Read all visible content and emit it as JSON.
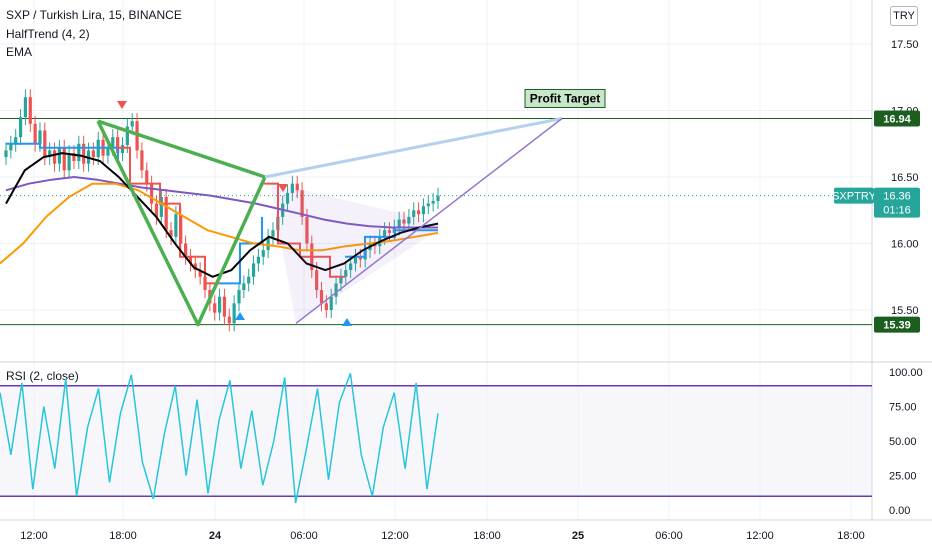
{
  "chart_title": "SXP / Turkish Lira, 15, BINANCE",
  "indicators": [
    "HalfTrend (4, 2)",
    "EMA"
  ],
  "currency_button": "TRY",
  "price_axis": {
    "ticks": [
      "17.50",
      "17.00",
      "16.50",
      "16.00",
      "15.50"
    ]
  },
  "levels": [
    {
      "label": "16.94",
      "value": 16.94
    },
    {
      "label": "15.39",
      "value": 15.39
    }
  ],
  "annotation": {
    "text": "Profit Target"
  },
  "last_price": {
    "symbol": "SXPTRY",
    "value": "16.36",
    "countdown": "01:16"
  },
  "rsi_panel": {
    "title": "RSI (2, close)",
    "ticks": [
      "100.00",
      "75.00",
      "50.00",
      "25.00",
      "0.00"
    ],
    "upper_band": 90,
    "lower_band": 10
  },
  "time_axis": {
    "labels": [
      "12:00",
      "18:00",
      "24",
      "06:00",
      "12:00",
      "18:00",
      "25",
      "06:00",
      "12:00",
      "18:00"
    ]
  },
  "colors": {
    "up": "#26a69a",
    "down": "#ef5350",
    "ema_long": "#7e57c2",
    "ema_mid": "#ff9800",
    "ema_short": "#000000",
    "halftrend_up": "#2196f3",
    "halftrend_down": "#ef5350",
    "pattern": "#4caf50",
    "level": "#1b5e20",
    "rsi": "#26c6da",
    "rsi_band": "#673ab7"
  },
  "chart_data": {
    "type": "candlestick",
    "x_range": [
      "12:00",
      "18:00 (25)"
    ],
    "ylim": [
      15.2,
      17.75
    ],
    "price_series_close": [
      16.7,
      16.75,
      16.8,
      16.95,
      17.1,
      16.9,
      16.75,
      16.85,
      16.65,
      16.7,
      16.6,
      16.72,
      16.55,
      16.68,
      16.62,
      16.75,
      16.6,
      16.7,
      16.65,
      16.78,
      16.66,
      16.72,
      16.8,
      16.68,
      16.74,
      16.88,
      16.92,
      16.7,
      16.55,
      16.45,
      16.3,
      16.2,
      16.35,
      16.1,
      16.05,
      16.22,
      16.0,
      15.9,
      15.85,
      15.8,
      15.75,
      15.65,
      15.55,
      15.48,
      15.6,
      15.45,
      15.4,
      15.55,
      15.65,
      15.7,
      15.75,
      15.85,
      15.9,
      15.95,
      16.05,
      16.1,
      16.2,
      16.3,
      16.38,
      16.45,
      16.4,
      16.2,
      16.0,
      15.8,
      15.65,
      15.55,
      15.5,
      15.6,
      15.7,
      15.75,
      15.8,
      15.85,
      15.9,
      15.88,
      15.95,
      16.0,
      15.98,
      16.05,
      16.1,
      16.08,
      16.12,
      16.18,
      16.15,
      16.2,
      16.25,
      16.22,
      16.28,
      16.3,
      16.32,
      16.36
    ],
    "ema_long": [
      16.4,
      16.45,
      16.48,
      16.5,
      16.48,
      16.45,
      16.42,
      16.4,
      16.38,
      16.36,
      16.33,
      16.3,
      16.26,
      16.22,
      16.18,
      16.15,
      16.13,
      16.12,
      16.12,
      16.12
    ],
    "rsi_values": [
      85,
      40,
      92,
      15,
      75,
      30,
      95,
      10,
      60,
      88,
      20,
      70,
      98,
      35,
      8,
      55,
      90,
      25,
      80,
      12,
      65,
      94,
      30,
      72,
      18,
      50,
      96,
      5,
      45,
      88,
      22,
      78,
      99,
      40,
      10,
      60,
      85,
      30,
      92,
      15,
      70
    ],
    "pattern_points": [
      {
        "x": "16:30",
        "y": 16.92
      },
      {
        "x": "22:00",
        "y": 15.39
      },
      {
        "x": "02:30",
        "y": 16.5
      },
      {
        "x": "06:00",
        "y": 15.4
      }
    ],
    "projection_to": {
      "x": "23:30",
      "y": 16.94
    }
  }
}
